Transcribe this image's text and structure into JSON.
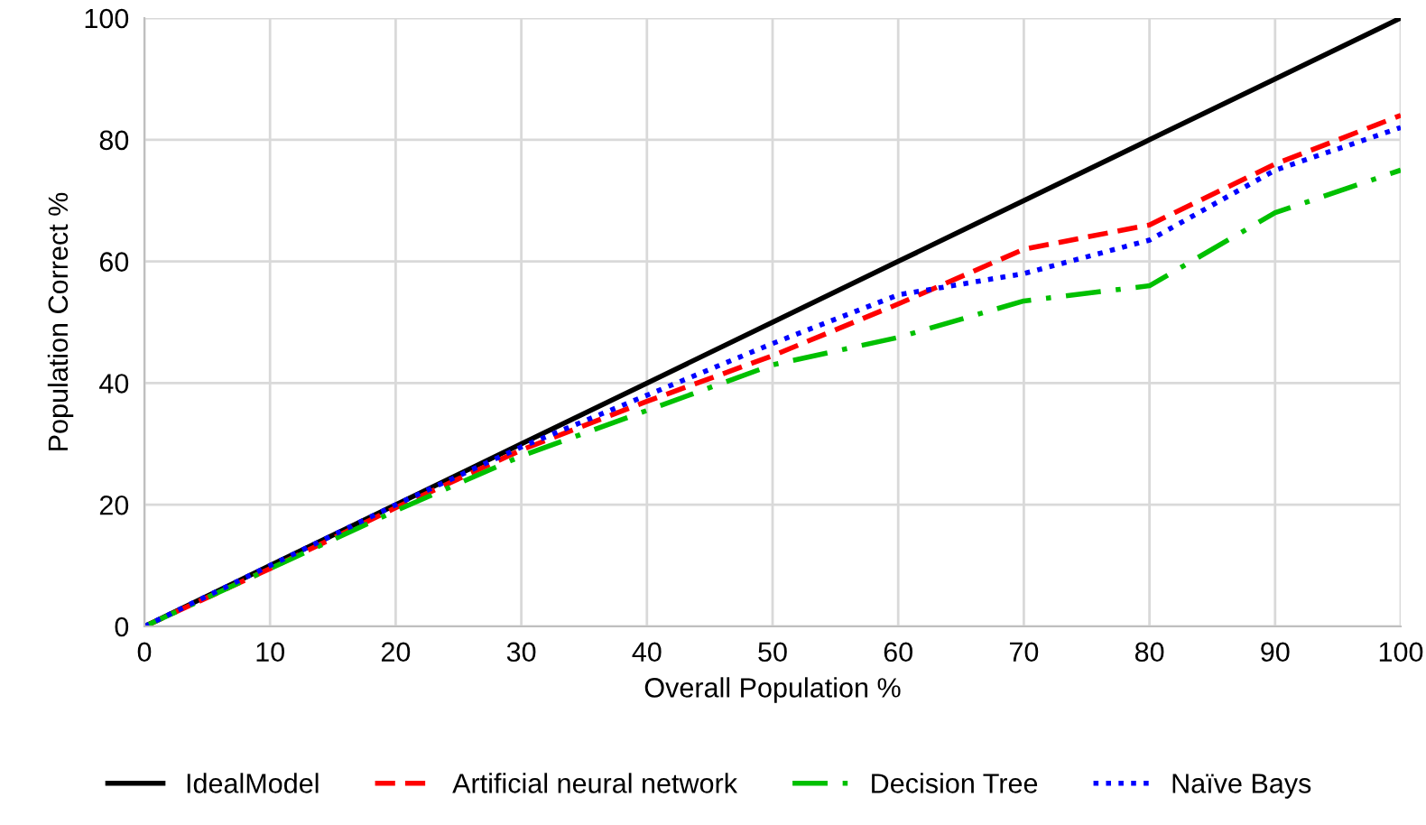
{
  "chart_data": {
    "type": "line",
    "xlabel": "Overall Population %",
    "ylabel": "Population Correct %",
    "x": [
      0,
      10,
      20,
      30,
      40,
      50,
      60,
      70,
      80,
      90,
      100
    ],
    "series": [
      {
        "name": "IdealModel",
        "color": "#000000",
        "line_style": "solid",
        "values": [
          0,
          10,
          20,
          30,
          40,
          50,
          60,
          70,
          80,
          90,
          100
        ]
      },
      {
        "name": "Artificial neural network",
        "color": "#ff0000",
        "line_style": "dashed",
        "values": [
          0,
          9.5,
          19.5,
          29,
          37,
          44.5,
          53,
          62,
          66,
          76,
          84
        ]
      },
      {
        "name": "Decision Tree",
        "color": "#00c000",
        "line_style": "dashdot",
        "values": [
          0,
          9.5,
          19,
          28,
          35.5,
          43,
          47.5,
          53.5,
          56,
          68,
          75
        ]
      },
      {
        "name": "Naïve Bays",
        "color": "#0000ff",
        "line_style": "dotted",
        "values": [
          0,
          10,
          20,
          29.5,
          38,
          46.5,
          54.5,
          58,
          63.5,
          75,
          82
        ]
      }
    ],
    "xlim": [
      0,
      100
    ],
    "xticks": [
      0,
      10,
      20,
      30,
      40,
      50,
      60,
      70,
      80,
      90,
      100
    ],
    "ylim": [
      0,
      100
    ],
    "yticks": [
      0,
      20,
      40,
      60,
      80,
      100
    ],
    "grid": true,
    "legend": "bottom",
    "marker": "none"
  }
}
